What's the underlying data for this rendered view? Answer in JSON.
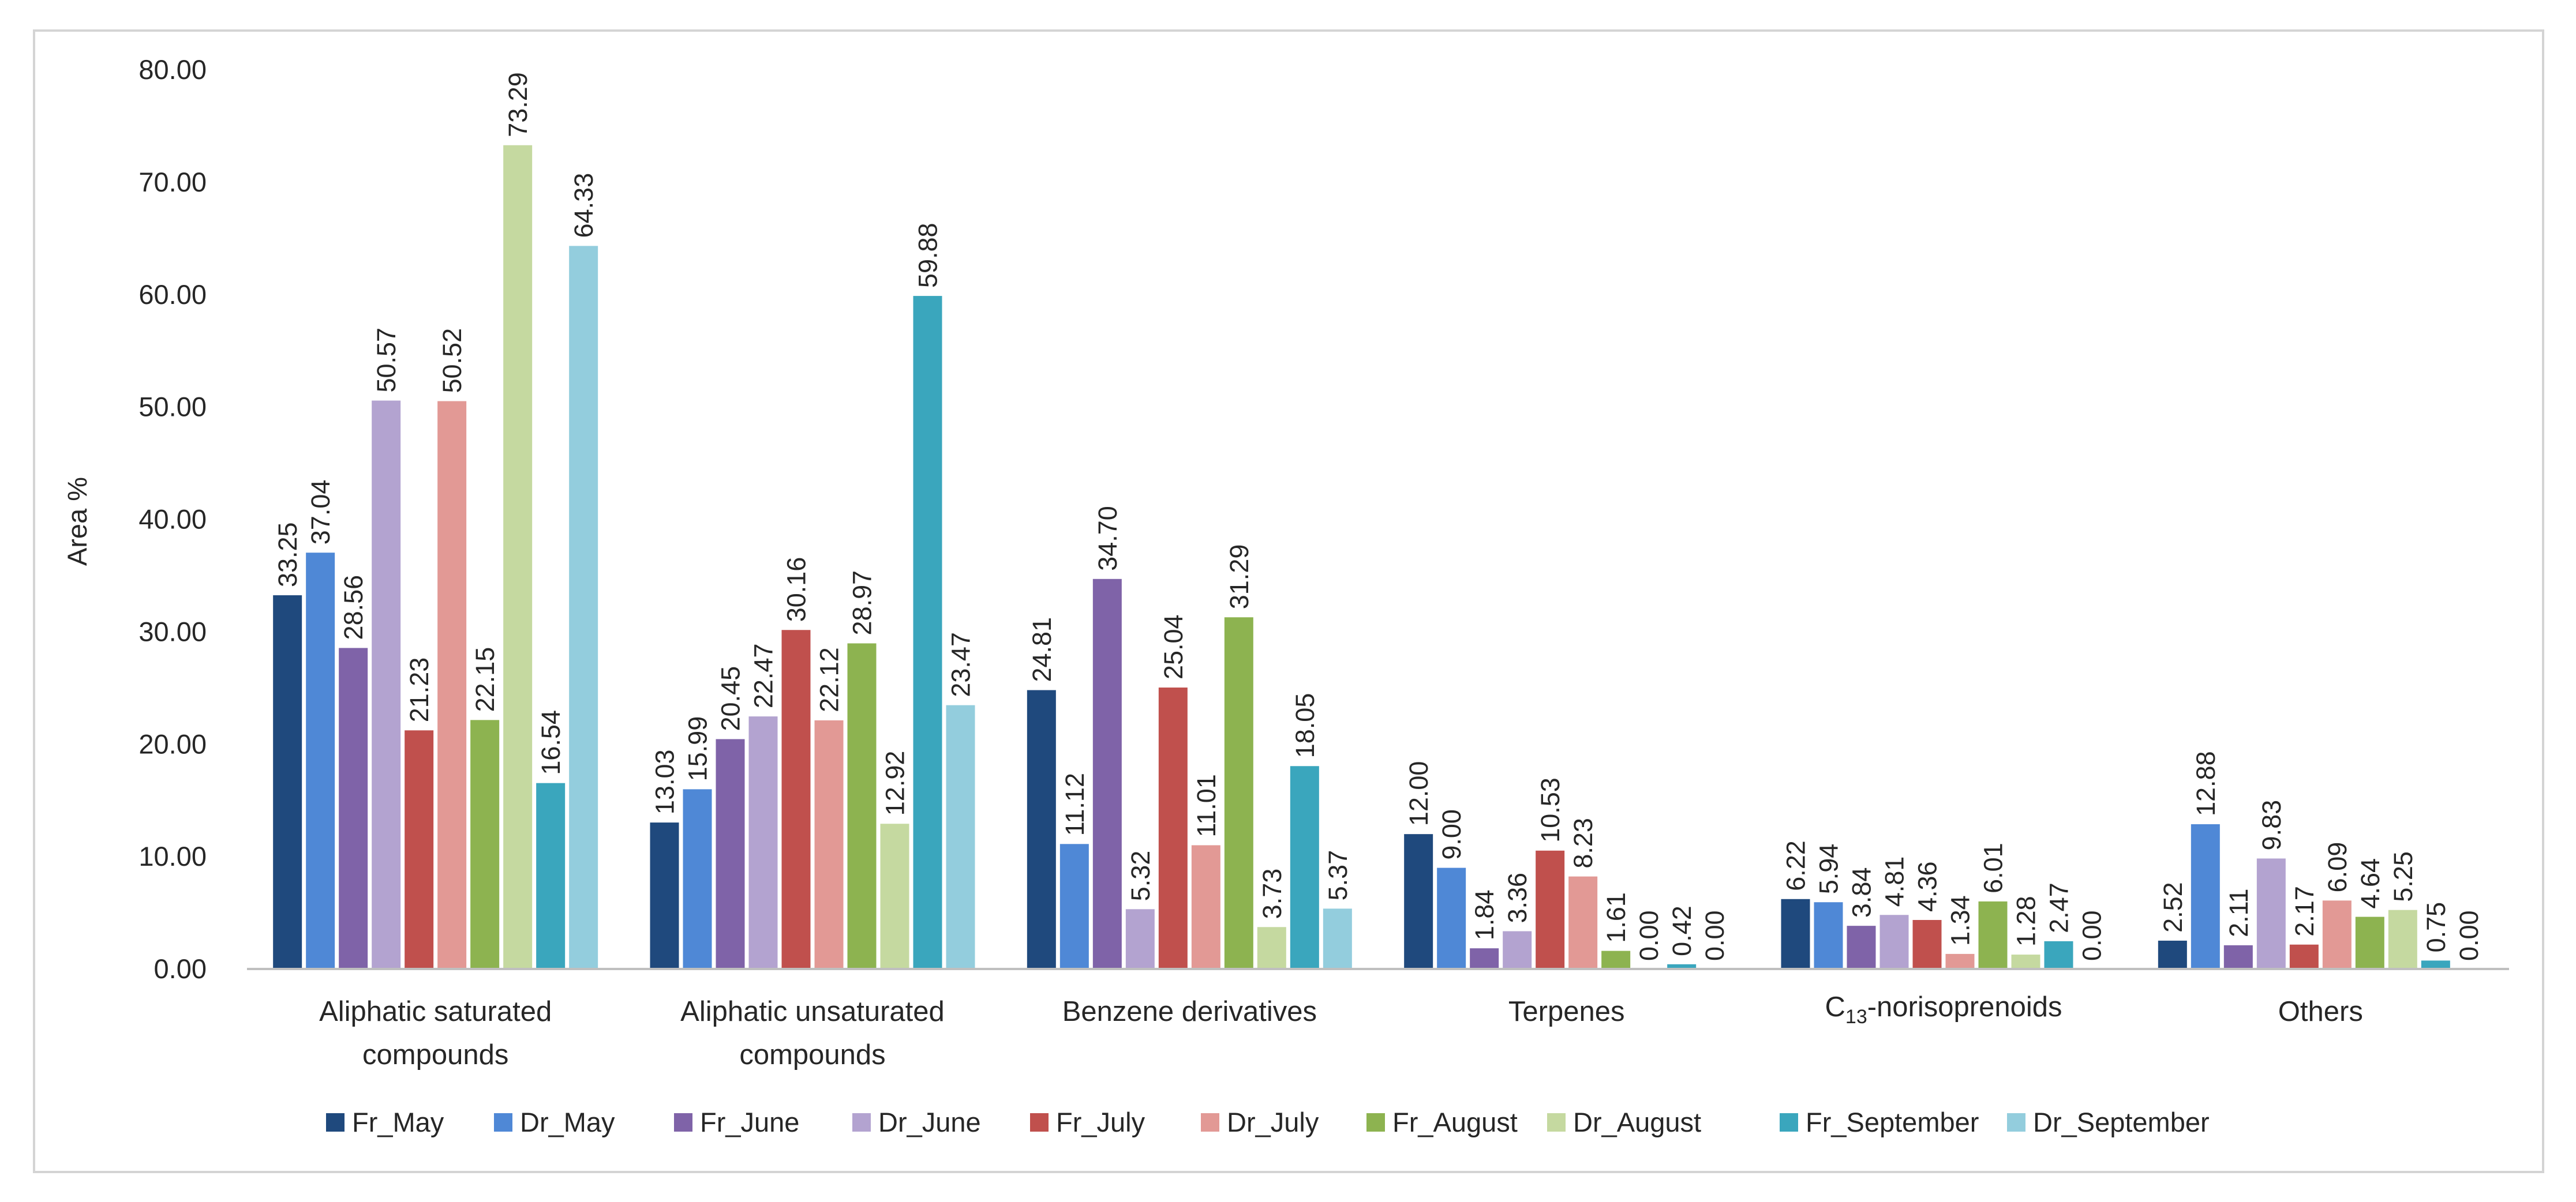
{
  "chart_data": {
    "type": "bar",
    "title": "",
    "xlabel": "",
    "ylabel": "Area %",
    "ylim": [
      0,
      80
    ],
    "yticks": [
      "0.00",
      "10.00",
      "20.00",
      "30.00",
      "40.00",
      "50.00",
      "60.00",
      "70.00",
      "80.00"
    ],
    "grid": false,
    "legend_position": "bottom",
    "categories": [
      {
        "lines": [
          "Aliphatic saturated",
          "compounds"
        ]
      },
      {
        "lines": [
          "Aliphatic unsaturated",
          "compounds"
        ]
      },
      {
        "lines": [
          "Benzene derivatives"
        ]
      },
      {
        "lines": [
          "Terpenes"
        ]
      },
      {
        "lines": [
          "C",
          "13",
          "-norisoprenoids"
        ],
        "subscript": true
      },
      {
        "lines": [
          "Others"
        ]
      }
    ],
    "series": [
      {
        "name": "Fr_May",
        "color": "#1f497d",
        "values": [
          33.25,
          13.03,
          24.81,
          12.0,
          6.22,
          2.52
        ],
        "labels": [
          "33.25",
          "13.03",
          "24.81",
          "12.00",
          "6.22",
          "2.52"
        ]
      },
      {
        "name": "Dr_May",
        "color": "#4f88d6",
        "values": [
          37.04,
          15.99,
          11.12,
          9.0,
          5.94,
          12.88
        ],
        "labels": [
          "37.04",
          "15.99",
          "11.12",
          "9.00",
          "5.94",
          "12.88"
        ]
      },
      {
        "name": "Fr_June",
        "color": "#7f63a8",
        "values": [
          28.56,
          20.45,
          34.7,
          1.84,
          3.84,
          2.11
        ],
        "labels": [
          "28.56",
          "20.45",
          "34.70",
          "1.84",
          "3.84",
          "2.11"
        ]
      },
      {
        "name": "Dr_June",
        "color": "#b3a3d0",
        "values": [
          50.57,
          22.47,
          5.32,
          3.36,
          4.81,
          9.83
        ],
        "labels": [
          "50.57",
          "22.47",
          "5.32",
          "3.36",
          "4.81",
          "9.83"
        ]
      },
      {
        "name": "Fr_July",
        "color": "#c0504d",
        "values": [
          21.23,
          30.16,
          25.04,
          10.53,
          4.36,
          2.17
        ],
        "labels": [
          "21.23",
          "30.16",
          "25.04",
          "10.53",
          "4.36",
          "2.17"
        ]
      },
      {
        "name": "Dr_July",
        "color": "#e29995",
        "values": [
          50.52,
          22.12,
          11.01,
          8.23,
          1.34,
          6.09
        ],
        "labels": [
          "50.52",
          "22.12",
          "11.01",
          "8.23",
          "1.34",
          "6.09"
        ]
      },
      {
        "name": "Fr_August",
        "color": "#8db350",
        "values": [
          22.15,
          28.97,
          31.29,
          1.61,
          6.01,
          4.64
        ],
        "labels": [
          "22.15",
          "28.97",
          "31.29",
          "1.61",
          "6.01",
          "4.64"
        ]
      },
      {
        "name": "Dr_August",
        "color": "#c5d9a0",
        "values": [
          73.29,
          12.92,
          3.73,
          0.0,
          1.28,
          5.25
        ],
        "labels": [
          "73.29",
          "12.92",
          "3.73",
          "0.00",
          "1.28",
          "5.25"
        ]
      },
      {
        "name": "Fr_September",
        "color": "#3aa6bd",
        "values": [
          16.54,
          59.88,
          18.05,
          0.42,
          2.47,
          0.75
        ],
        "labels": [
          "16.54",
          "59.88",
          "18.05",
          "0.42",
          "2.47",
          "0.75"
        ]
      },
      {
        "name": "Dr_September",
        "color": "#93cddd",
        "values": [
          64.33,
          23.47,
          5.37,
          0.0,
          0.0,
          0.0
        ],
        "labels": [
          "64.33",
          "23.47",
          "5.37",
          "0.00",
          "0.00",
          "0.00"
        ]
      }
    ]
  }
}
